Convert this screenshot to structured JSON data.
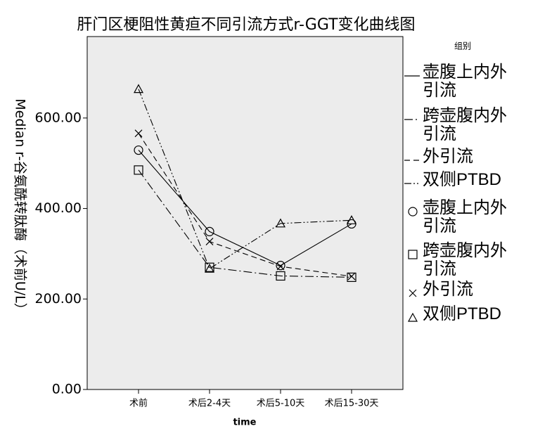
{
  "chart_data": {
    "type": "line",
    "title": "肝门区梗阻性黄疸不同引流方式r-GGT变化曲线图",
    "x_label": "time",
    "y_label": "Median r-谷氨酰转肽酶（术前U/L）",
    "legend_title": "组别",
    "categories": [
      "术前",
      "术后2-4天",
      "术后5-10天",
      "术后15-30天"
    ],
    "series": [
      {
        "name": "壶腹上内外引流",
        "color": "#000000",
        "dash": "none",
        "marker": "circle",
        "values": [
          529,
          349,
          274,
          366
        ]
      },
      {
        "name": "跨壶腹内外引流",
        "color": "#000000",
        "dash": "12,4,2,4",
        "marker": "square",
        "values": [
          485,
          270,
          251,
          248
        ]
      },
      {
        "name": "外引流",
        "color": "#000000",
        "dash": "8,5",
        "marker": "x",
        "values": [
          566,
          327,
          272,
          250
        ]
      },
      {
        "name": "双侧PTBD",
        "color": "#000000",
        "dash": "10,3,2,3,2,3",
        "marker": "triangle",
        "values": [
          664,
          267,
          367,
          374
        ]
      }
    ],
    "ylim": [
      0,
      780
    ],
    "yticks": [
      {
        "value": 0,
        "label": "0.00"
      },
      {
        "value": 200,
        "label": "200.00"
      },
      {
        "value": 400,
        "label": "400.00"
      },
      {
        "value": 600,
        "label": "600.00"
      }
    ],
    "plot_background": "#ececec"
  }
}
